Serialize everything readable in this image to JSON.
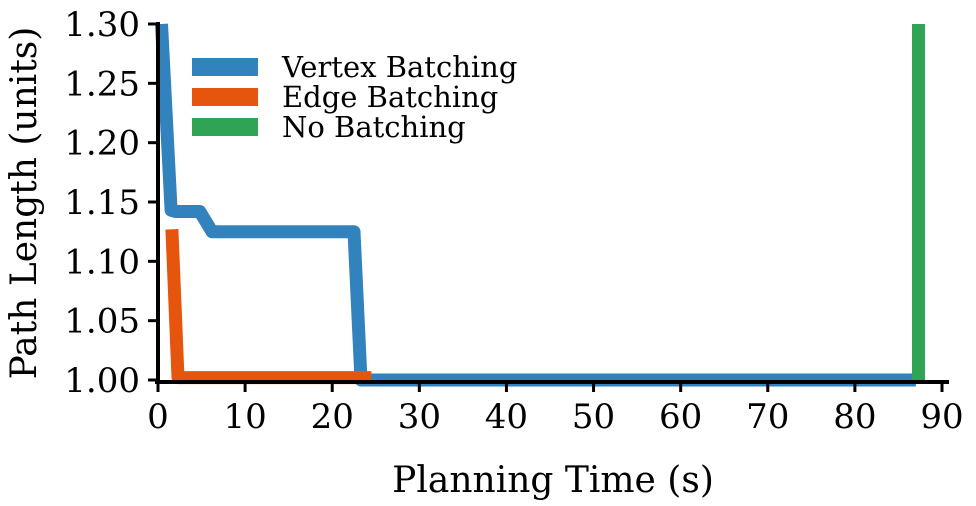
{
  "chart_data": {
    "type": "line",
    "title": "",
    "xlabel": "Planning Time (s)",
    "ylabel": "Path Length (units)",
    "xlim": [
      0,
      90
    ],
    "ylim": [
      1.0,
      1.3
    ],
    "x_ticks": [
      "0",
      "10",
      "20",
      "30",
      "40",
      "50",
      "60",
      "70",
      "80",
      "90"
    ],
    "y_ticks": [
      "1.00",
      "1.05",
      "1.10",
      "1.15",
      "1.20",
      "1.25",
      "1.30"
    ],
    "grid": false,
    "legend_position": "top-left",
    "series": [
      {
        "name": "Vertex Batching",
        "color": "#3182bd",
        "points": [
          [
            0.4,
            1.3
          ],
          [
            1.5,
            1.143
          ],
          [
            2.0,
            1.142
          ],
          [
            4.8,
            1.142
          ],
          [
            6.2,
            1.125
          ],
          [
            22.5,
            1.125
          ],
          [
            23.3,
            1.0
          ],
          [
            87.0,
            1.0
          ]
        ]
      },
      {
        "name": "Edge Batching",
        "color": "#e6550d",
        "points": [
          [
            1.6,
            1.127
          ],
          [
            2.3,
            1.002
          ],
          [
            24.5,
            1.002
          ]
        ]
      },
      {
        "name": "No Batching",
        "color": "#31a354",
        "points": [
          [
            87.3,
            1.0
          ],
          [
            87.3,
            1.3
          ]
        ]
      }
    ]
  }
}
